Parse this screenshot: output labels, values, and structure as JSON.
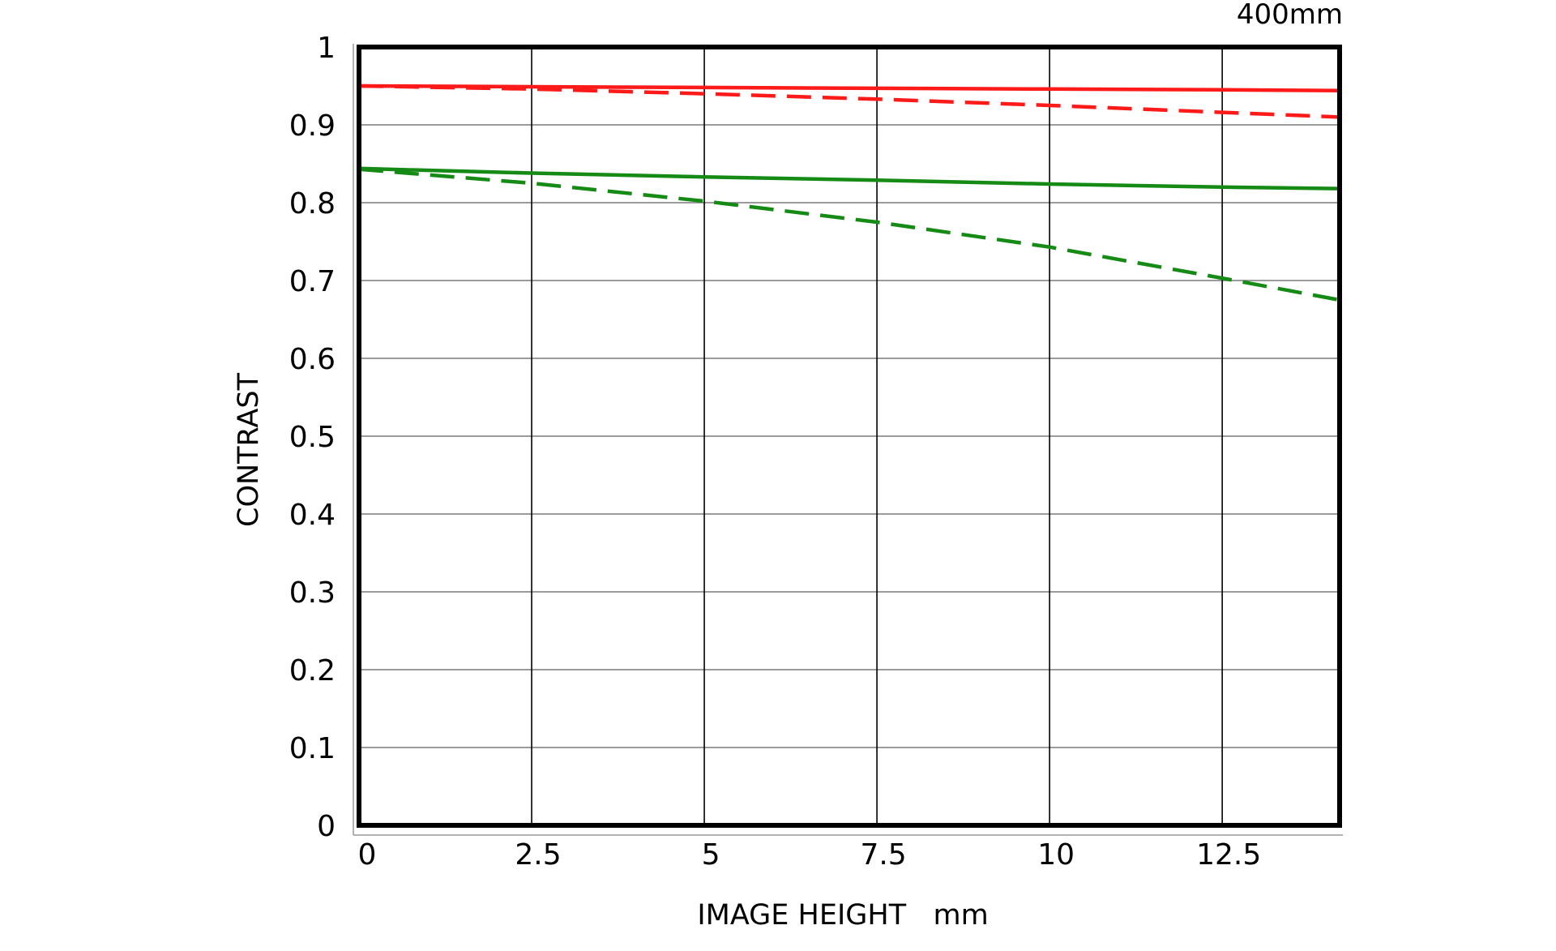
{
  "chart_data": {
    "type": "line",
    "title": "400mm",
    "xlabel": "IMAGE HEIGHT   mm",
    "ylabel": "CONTRAST",
    "xlim": [
      0,
      14.2
    ],
    "ylim": [
      0,
      1
    ],
    "x_ticks": [
      "0",
      "2.5",
      "5",
      "7.5",
      "10",
      "12.5"
    ],
    "x_tick_values": [
      0,
      2.5,
      5,
      7.5,
      10,
      12.5
    ],
    "y_ticks": [
      "0",
      "0.1",
      "0.2",
      "0.3",
      "0.4",
      "0.5",
      "0.6",
      "0.7",
      "0.8",
      "0.9",
      "1"
    ],
    "y_tick_values": [
      0,
      0.1,
      0.2,
      0.3,
      0.4,
      0.5,
      0.6,
      0.7,
      0.8,
      0.9,
      1
    ],
    "grid": true,
    "x": [
      0,
      2.5,
      5,
      7.5,
      10,
      12.5,
      14.2
    ],
    "series": [
      {
        "color": "#ff1a1a",
        "style": "solid",
        "values": [
          0.95,
          0.949,
          0.948,
          0.947,
          0.946,
          0.945,
          0.944
        ]
      },
      {
        "color": "#ff1a1a",
        "style": "dashed",
        "values": [
          0.95,
          0.946,
          0.94,
          0.933,
          0.925,
          0.916,
          0.91
        ]
      },
      {
        "color": "#158a15",
        "style": "solid",
        "values": [
          0.844,
          0.838,
          0.833,
          0.829,
          0.824,
          0.82,
          0.818
        ]
      },
      {
        "color": "#158a15",
        "style": "dashed",
        "values": [
          0.843,
          0.825,
          0.802,
          0.775,
          0.743,
          0.703,
          0.675
        ]
      }
    ]
  }
}
